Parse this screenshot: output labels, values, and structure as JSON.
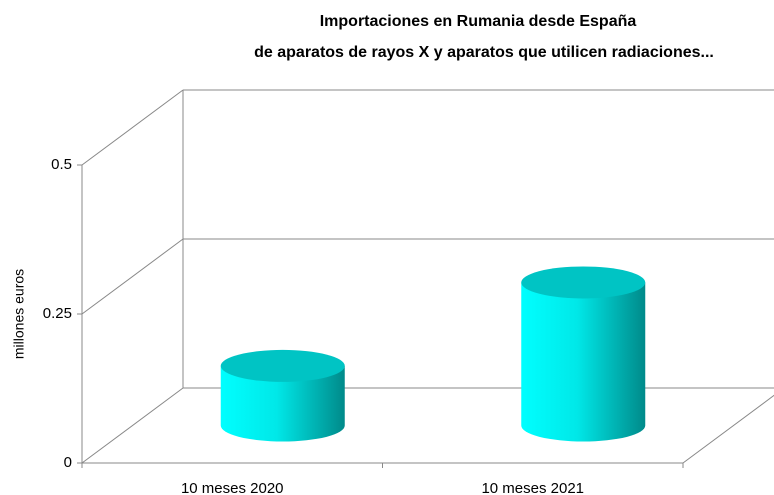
{
  "chart_data": {
    "type": "bar3d",
    "title": "Importaciones en Rumania desde España",
    "subtitle": "de aparatos de rayos X y aparatos que utilicen radiaciones...",
    "ylabel": "millones euros",
    "categories": [
      "10 meses 2020",
      "10 meses 2021"
    ],
    "values": [
      0.1,
      0.24
    ],
    "color": "#00e0e0",
    "ylim": [
      0,
      0.5
    ],
    "yticks": [
      0,
      0.25,
      0.5
    ],
    "grid": true
  }
}
